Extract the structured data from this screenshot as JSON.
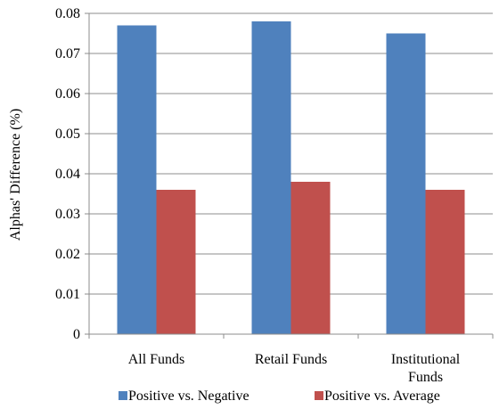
{
  "chart_data": {
    "type": "bar",
    "categories": [
      [
        "All Funds"
      ],
      [
        "Retail Funds"
      ],
      [
        "Institutional",
        "Funds"
      ]
    ],
    "series": [
      {
        "name": "Positive vs. Negative",
        "values": [
          0.077,
          0.078,
          0.075
        ],
        "color": "#4f81bd"
      },
      {
        "name": "Positive vs. Average",
        "values": [
          0.036,
          0.038,
          0.036
        ],
        "color": "#c0504d"
      }
    ],
    "ylabel": "Alphas' Difference (%)",
    "ylim": [
      0,
      0.08
    ],
    "yticks": [
      "0",
      "0.01",
      "0.02",
      "0.03",
      "0.04",
      "0.05",
      "0.06",
      "0.07",
      "0.08"
    ],
    "grid": true,
    "legend": "bottom"
  }
}
